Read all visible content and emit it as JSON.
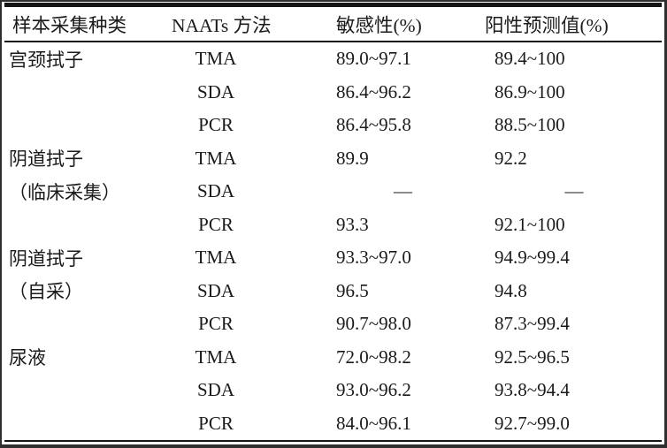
{
  "page": {
    "background": "#ffffff",
    "text_color": "#1a1a1a",
    "rule_color": "#151515",
    "frame_color": "#2f2f2f"
  },
  "chart_data": {
    "type": "table",
    "columns": [
      "样本采集种类",
      "NAATs 方法",
      "敏感性(%)",
      "阳性预测值(%)"
    ],
    "rows": [
      [
        "宫颈拭子",
        "TMA",
        "89.0~97.1",
        "89.4~100"
      ],
      [
        "",
        "SDA",
        "86.4~96.2",
        "86.9~100"
      ],
      [
        "",
        "PCR",
        "86.4~95.8",
        "88.5~100"
      ],
      [
        "阴道拭子",
        "TMA",
        "89.9",
        "92.2"
      ],
      [
        "（临床采集）",
        "SDA",
        "—",
        "—"
      ],
      [
        "",
        "PCR",
        "93.3",
        "92.1~100"
      ],
      [
        "阴道拭子",
        "TMA",
        "93.3~97.0",
        "94.9~99.4"
      ],
      [
        "（自采）",
        "SDA",
        "96.5",
        "94.8"
      ],
      [
        "",
        "PCR",
        "90.7~98.0",
        "87.3~99.4"
      ],
      [
        "尿液",
        "TMA",
        "72.0~98.2",
        "92.5~96.5"
      ],
      [
        "",
        "SDA",
        "93.0~96.2",
        "93.8~94.4"
      ],
      [
        "",
        "PCR",
        "84.0~96.1",
        "92.7~99.0"
      ]
    ]
  }
}
